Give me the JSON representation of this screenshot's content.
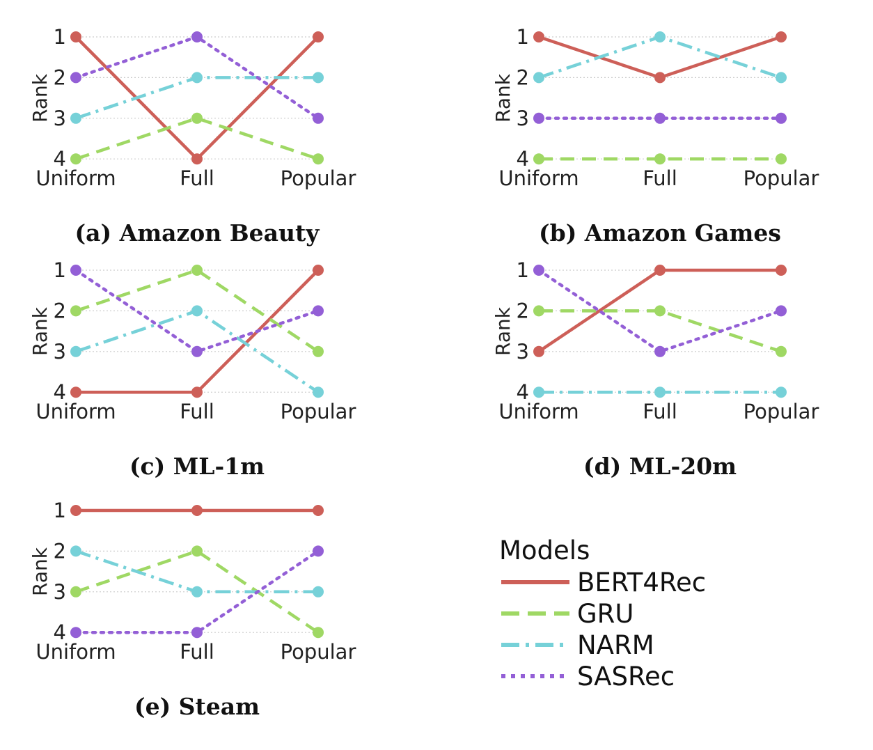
{
  "colors": {
    "BERT4Rec": "#cd5f58",
    "GRU": "#9fd864",
    "NARM": "#76d1d8",
    "SASRec": "#935fd6",
    "grid": "#cccccc"
  },
  "legend": {
    "title": "Models",
    "entries": [
      {
        "label": "BERT4Rec",
        "style": "solid",
        "series": "BERT4Rec"
      },
      {
        "label": "GRU",
        "style": "dashed",
        "series": "GRU"
      },
      {
        "label": "NARM",
        "style": "dashdot",
        "series": "NARM"
      },
      {
        "label": "SASRec",
        "style": "dotted",
        "series": "SASRec"
      }
    ]
  },
  "chart_data": [
    {
      "type": "line",
      "caption": "(a) Amazon Beauty",
      "categories": [
        "Uniform",
        "Full",
        "Popular"
      ],
      "ylabel": "Rank",
      "yticks": [
        "1",
        "2",
        "3",
        "4"
      ],
      "ylim": [
        4,
        1
      ],
      "grid": "horizontal dotted",
      "series": [
        {
          "name": "BERT4Rec",
          "style": "solid",
          "values": [
            1,
            4,
            1
          ]
        },
        {
          "name": "GRU",
          "style": "dashed",
          "values": [
            4,
            3,
            4
          ]
        },
        {
          "name": "NARM",
          "style": "dashdot",
          "values": [
            3,
            2,
            2
          ]
        },
        {
          "name": "SASRec",
          "style": "dotted",
          "values": [
            2,
            1,
            3
          ]
        }
      ]
    },
    {
      "type": "line",
      "caption": "(b) Amazon Games",
      "categories": [
        "Uniform",
        "Full",
        "Popular"
      ],
      "ylabel": "Rank",
      "yticks": [
        "1",
        "2",
        "3",
        "4"
      ],
      "ylim": [
        4,
        1
      ],
      "grid": "horizontal dotted",
      "series": [
        {
          "name": "BERT4Rec",
          "style": "solid",
          "values": [
            1,
            2,
            1
          ]
        },
        {
          "name": "GRU",
          "style": "dashed",
          "values": [
            4,
            4,
            4
          ]
        },
        {
          "name": "NARM",
          "style": "dashdot",
          "values": [
            2,
            1,
            2
          ]
        },
        {
          "name": "SASRec",
          "style": "dotted",
          "values": [
            3,
            3,
            3
          ]
        }
      ]
    },
    {
      "type": "line",
      "caption": "(c) ML-1m",
      "categories": [
        "Uniform",
        "Full",
        "Popular"
      ],
      "ylabel": "Rank",
      "yticks": [
        "1",
        "2",
        "3",
        "4"
      ],
      "ylim": [
        4,
        1
      ],
      "grid": "horizontal dotted",
      "series": [
        {
          "name": "BERT4Rec",
          "style": "solid",
          "values": [
            4,
            4,
            1
          ]
        },
        {
          "name": "GRU",
          "style": "dashed",
          "values": [
            2,
            1,
            3
          ]
        },
        {
          "name": "NARM",
          "style": "dashdot",
          "values": [
            3,
            2,
            4
          ]
        },
        {
          "name": "SASRec",
          "style": "dotted",
          "values": [
            1,
            3,
            2
          ]
        }
      ]
    },
    {
      "type": "line",
      "caption": "(d) ML-20m",
      "categories": [
        "Uniform",
        "Full",
        "Popular"
      ],
      "ylabel": "Rank",
      "yticks": [
        "1",
        "2",
        "3",
        "4"
      ],
      "ylim": [
        4,
        1
      ],
      "grid": "horizontal dotted",
      "series": [
        {
          "name": "BERT4Rec",
          "style": "solid",
          "values": [
            3,
            1,
            1
          ]
        },
        {
          "name": "GRU",
          "style": "dashed",
          "values": [
            2,
            2,
            3
          ]
        },
        {
          "name": "NARM",
          "style": "dashdot",
          "values": [
            4,
            4,
            4
          ]
        },
        {
          "name": "SASRec",
          "style": "dotted",
          "values": [
            1,
            3,
            2
          ]
        }
      ]
    },
    {
      "type": "line",
      "caption": "(e) Steam",
      "categories": [
        "Uniform",
        "Full",
        "Popular"
      ],
      "ylabel": "Rank",
      "yticks": [
        "1",
        "2",
        "3",
        "4"
      ],
      "ylim": [
        4,
        1
      ],
      "grid": "horizontal dotted",
      "series": [
        {
          "name": "BERT4Rec",
          "style": "solid",
          "values": [
            1,
            1,
            1
          ]
        },
        {
          "name": "GRU",
          "style": "dashed",
          "values": [
            3,
            2,
            4
          ]
        },
        {
          "name": "NARM",
          "style": "dashdot",
          "values": [
            2,
            3,
            3
          ]
        },
        {
          "name": "SASRec",
          "style": "dotted",
          "values": [
            4,
            4,
            2
          ]
        }
      ]
    }
  ]
}
